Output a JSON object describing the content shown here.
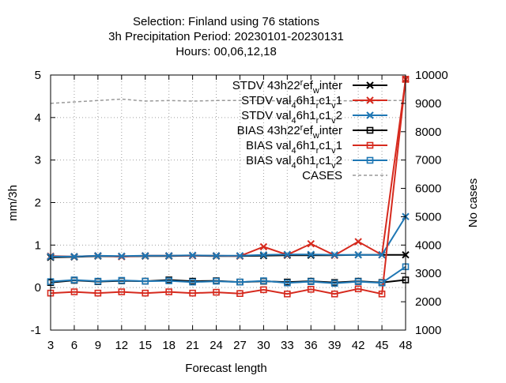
{
  "chart_data": {
    "type": "line",
    "title_lines": [
      "Selection: Finland using    76 stations",
      "3h Precipitation   Period: 20230101-20230131",
      "Hours:  00,06,12,18"
    ],
    "xlabel": "Forecast length",
    "ylabel": "mm/3h",
    "y2label": "No cases",
    "x": [
      3,
      6,
      9,
      12,
      15,
      18,
      21,
      24,
      27,
      30,
      33,
      36,
      39,
      42,
      45,
      48
    ],
    "xticks": [
      "3",
      "6",
      "9",
      "12",
      "15",
      "18",
      "21",
      "24",
      "27",
      "30",
      "33",
      "36",
      "39",
      "42",
      "45",
      "48"
    ],
    "ylim": [
      -1,
      5
    ],
    "yticks": [
      "-1",
      "0",
      "1",
      "2",
      "3",
      "4",
      "5"
    ],
    "y2lim": [
      1000,
      10000
    ],
    "y2ticks": [
      "1000",
      "2000",
      "3000",
      "4000",
      "5000",
      "6000",
      "7000",
      "8000",
      "9000",
      "10000"
    ],
    "grid": true,
    "legend_position": "top-right",
    "series": [
      {
        "name": "STDV 43h22_ref_winter",
        "legend": {
          "parts": [
            [
              "STDV 43h22",
              0
            ],
            [
              "r",
              -1
            ],
            [
              "ef",
              0
            ],
            [
              "w",
              1
            ],
            [
              "inter",
              0
            ]
          ]
        },
        "color": "#000000",
        "marker": "x",
        "axis": "y1",
        "values": [
          0.71,
          0.72,
          0.74,
          0.73,
          0.74,
          0.74,
          0.75,
          0.74,
          0.74,
          0.75,
          0.76,
          0.76,
          0.76,
          0.77,
          0.77,
          0.77
        ]
      },
      {
        "name": "STDV val_46h1_rc1_v1",
        "legend": {
          "parts": [
            [
              "STDV val",
              0
            ],
            [
              "4",
              1
            ],
            [
              "6h1",
              0
            ],
            [
              "r",
              1
            ],
            [
              "c1",
              0
            ],
            [
              "v",
              1
            ],
            [
              "1",
              0
            ]
          ]
        },
        "color": "#d62a1e",
        "marker": "x",
        "axis": "y1",
        "values": [
          0.74,
          0.73,
          0.75,
          0.73,
          0.75,
          0.75,
          0.75,
          0.75,
          0.74,
          0.96,
          0.77,
          1.03,
          0.76,
          1.08,
          0.77,
          4.9
        ]
      },
      {
        "name": "STDV val_46h1_rc1_v2",
        "legend": {
          "parts": [
            [
              "STDV val",
              0
            ],
            [
              "4",
              1
            ],
            [
              "6h1",
              0
            ],
            [
              "r",
              1
            ],
            [
              "c1",
              0
            ],
            [
              "v",
              1
            ],
            [
              "2",
              0
            ]
          ]
        },
        "color": "#1f77b4",
        "marker": "x",
        "axis": "y1",
        "values": [
          0.73,
          0.73,
          0.75,
          0.74,
          0.75,
          0.75,
          0.76,
          0.75,
          0.75,
          0.77,
          0.78,
          0.78,
          0.77,
          0.77,
          0.77,
          1.67
        ]
      },
      {
        "name": "BIAS 43h22_ref_winter",
        "legend": {
          "parts": [
            [
              "BIAS 43h22",
              0
            ],
            [
              "r",
              -1
            ],
            [
              "ef",
              0
            ],
            [
              "w",
              1
            ],
            [
              "inter",
              0
            ]
          ]
        },
        "color": "#000000",
        "marker": "square",
        "axis": "y1",
        "values": [
          0.12,
          0.17,
          0.14,
          0.16,
          0.15,
          0.18,
          0.15,
          0.16,
          0.13,
          0.15,
          0.13,
          0.15,
          0.12,
          0.15,
          0.12,
          0.18
        ]
      },
      {
        "name": "BIAS val_46h1_rc1_v1",
        "legend": {
          "parts": [
            [
              "BIAS val",
              0
            ],
            [
              "4",
              1
            ],
            [
              "6h1",
              0
            ],
            [
              "r",
              1
            ],
            [
              "c1",
              0
            ],
            [
              "v",
              1
            ],
            [
              "1",
              0
            ]
          ]
        },
        "color": "#d62a1e",
        "marker": "square",
        "axis": "y1",
        "values": [
          -0.13,
          -0.1,
          -0.13,
          -0.1,
          -0.13,
          -0.1,
          -0.13,
          -0.11,
          -0.14,
          -0.05,
          -0.15,
          -0.04,
          -0.15,
          -0.03,
          -0.15,
          4.9
        ]
      },
      {
        "name": "BIAS val_46h1_rc1_v2",
        "legend": {
          "parts": [
            [
              "BIAS val",
              0
            ],
            [
              "4",
              1
            ],
            [
              "6h1",
              0
            ],
            [
              "r",
              1
            ],
            [
              "c1",
              0
            ],
            [
              "v",
              1
            ],
            [
              "2",
              0
            ]
          ]
        },
        "color": "#1f77b4",
        "marker": "square",
        "axis": "y1",
        "values": [
          0.14,
          0.18,
          0.15,
          0.17,
          0.15,
          0.16,
          0.13,
          0.15,
          0.13,
          0.16,
          0.11,
          0.14,
          0.1,
          0.14,
          0.11,
          0.49
        ]
      },
      {
        "name": "CASES",
        "legend": {
          "parts": [
            [
              "CASES",
              0
            ]
          ]
        },
        "color": "#999999",
        "marker": "none",
        "dashed": true,
        "axis": "y2",
        "values": [
          9000,
          9050,
          9100,
          9150,
          9080,
          9100,
          9080,
          9100,
          9100,
          9100,
          9080,
          9100,
          9100,
          9080,
          9100,
          9100
        ]
      }
    ]
  }
}
